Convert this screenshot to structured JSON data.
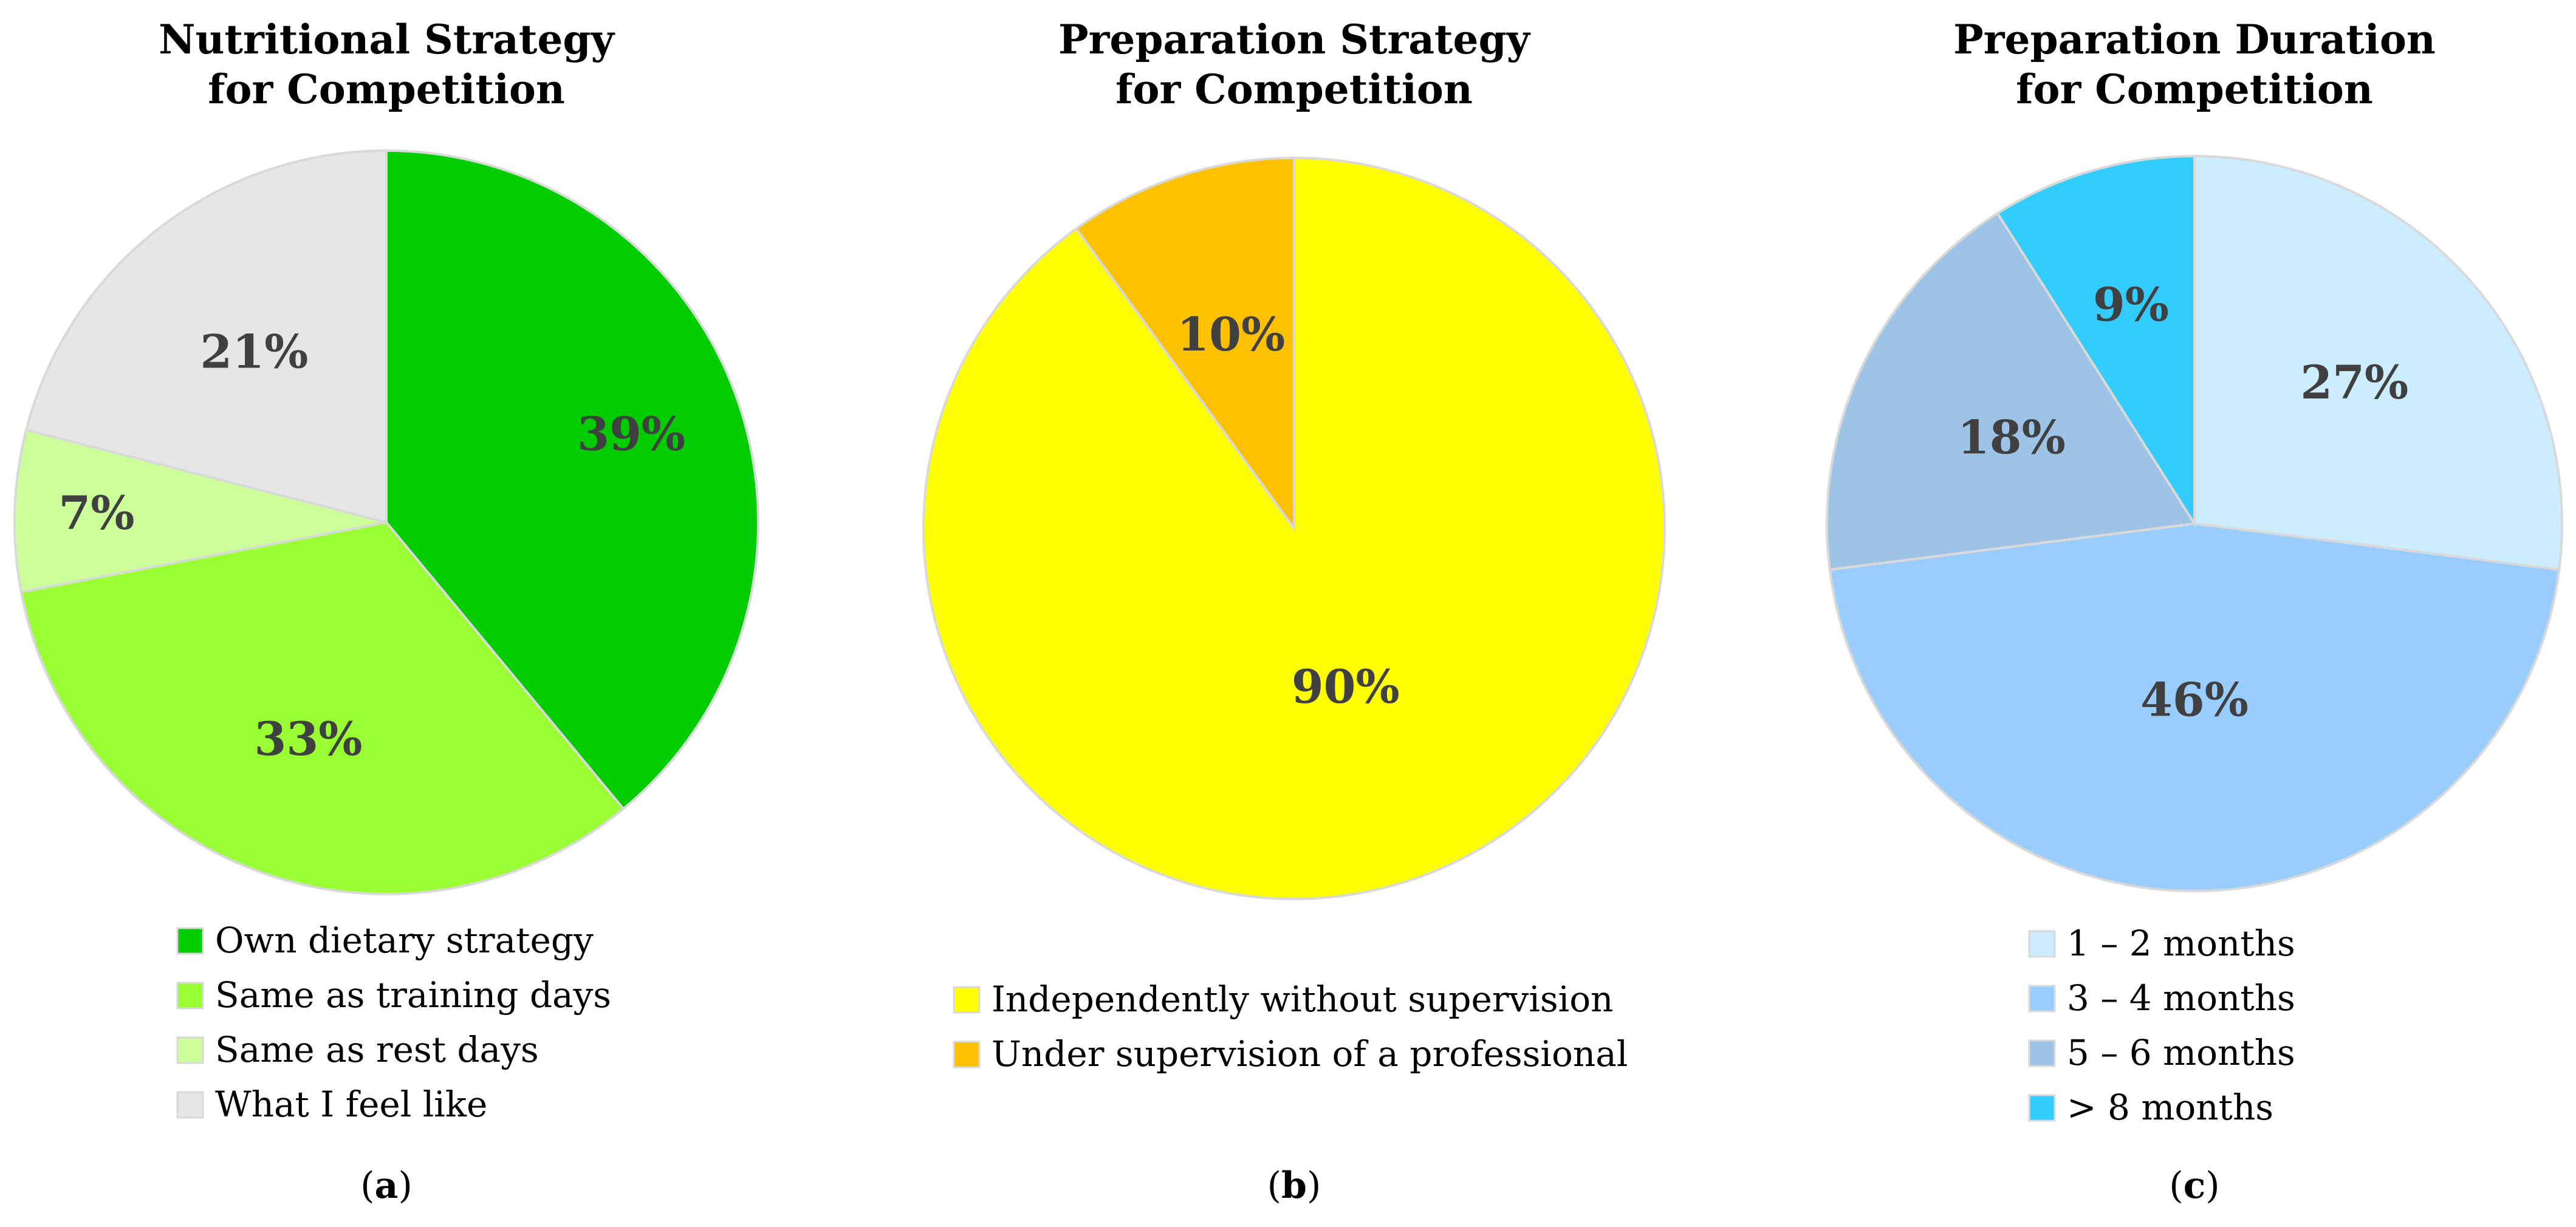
{
  "chart_data": [
    {
      "type": "pie",
      "panel_label": "a",
      "title_lines": [
        "Nutritional Strategy",
        "for Competition"
      ],
      "categories": [
        "Own dietary strategy",
        "Same as training days",
        "Same as rest days",
        "What I feel like"
      ],
      "values": [
        39,
        33,
        7,
        21
      ],
      "value_labels": [
        "39%",
        "33%",
        "7%",
        "21%"
      ],
      "colors": [
        "#00CC00",
        "#99FF33",
        "#CCFF99",
        "#E7E6E6"
      ],
      "start": "top",
      "direction": "clockwise",
      "legend_placement": "bottom"
    },
    {
      "type": "pie",
      "panel_label": "b",
      "title_lines": [
        "Preparation Strategy",
        "for Competition"
      ],
      "categories": [
        "Independently without supervision",
        "Under supervision of a professional"
      ],
      "values": [
        90,
        10
      ],
      "value_labels": [
        "90%",
        "10%"
      ],
      "colors": [
        "#FFFF00",
        "#FFC000"
      ],
      "start": "top",
      "direction": "clockwise",
      "legend_placement": "bottom"
    },
    {
      "type": "pie",
      "panel_label": "c",
      "title_lines": [
        "Preparation Duration",
        "for Competition"
      ],
      "categories": [
        "1 – 2 months",
        "3 – 4 months",
        "5 – 6 months",
        "> 8 months"
      ],
      "values": [
        27,
        46,
        18,
        9
      ],
      "value_labels": [
        "27%",
        "46%",
        "18%",
        "9%"
      ],
      "colors": [
        "#CCECFF",
        "#99CCFF",
        "#9DC3E6",
        "#33CCFF"
      ],
      "start": "top",
      "direction": "clockwise",
      "legend_placement": "bottom"
    }
  ]
}
